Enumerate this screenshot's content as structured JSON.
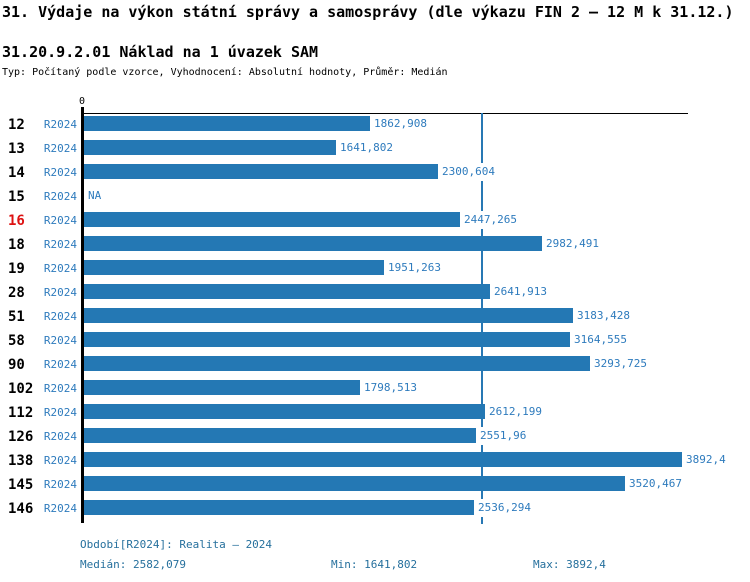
{
  "chart_data": {
    "type": "bar",
    "orientation": "horizontal",
    "title": "31. Výdaje na výkon státní správy a samosprávy (dle výkazu FIN 2 – 12 M k 31.12.)",
    "subtitle": "31.20.9.2.01 Náklad na 1 úvazek SAM",
    "meta": "Typ: Počítaný podle vzorce, Vyhodnocení: Absolutní hodnoty, Průměr: Medián",
    "series_label": "R2024",
    "na_label": "NA",
    "axis": {
      "zero_label": "0",
      "xlim": [
        0,
        3930
      ],
      "grid": false
    },
    "median_value": 2582.079,
    "categories": [
      "12",
      "13",
      "14",
      "15",
      "16",
      "18",
      "19",
      "28",
      "51",
      "58",
      "90",
      "102",
      "112",
      "126",
      "138",
      "145",
      "146"
    ],
    "rows": [
      {
        "id": "12",
        "value": 1862.908,
        "label": "1862,908",
        "highlighted": false
      },
      {
        "id": "13",
        "value": 1641.802,
        "label": "1641,802",
        "highlighted": false
      },
      {
        "id": "14",
        "value": 2300.604,
        "label": "2300,604",
        "highlighted": false
      },
      {
        "id": "15",
        "value": null,
        "label": "NA",
        "highlighted": false
      },
      {
        "id": "16",
        "value": 2447.265,
        "label": "2447,265",
        "highlighted": true
      },
      {
        "id": "18",
        "value": 2982.491,
        "label": "2982,491",
        "highlighted": false
      },
      {
        "id": "19",
        "value": 1951.263,
        "label": "1951,263",
        "highlighted": false
      },
      {
        "id": "28",
        "value": 2641.913,
        "label": "2641,913",
        "highlighted": false
      },
      {
        "id": "51",
        "value": 3183.428,
        "label": "3183,428",
        "highlighted": false
      },
      {
        "id": "58",
        "value": 3164.555,
        "label": "3164,555",
        "highlighted": false
      },
      {
        "id": "90",
        "value": 3293.725,
        "label": "3293,725",
        "highlighted": false
      },
      {
        "id": "102",
        "value": 1798.513,
        "label": "1798,513",
        "highlighted": false
      },
      {
        "id": "112",
        "value": 2612.199,
        "label": "2612,199",
        "highlighted": false
      },
      {
        "id": "126",
        "value": 2551.96,
        "label": "2551,96",
        "highlighted": false
      },
      {
        "id": "138",
        "value": 3892.4,
        "label": "3892,4",
        "highlighted": false
      },
      {
        "id": "145",
        "value": 3520.467,
        "label": "3520,467",
        "highlighted": false
      },
      {
        "id": "146",
        "value": 2536.294,
        "label": "2536,294",
        "highlighted": false
      }
    ],
    "footer": {
      "period": "Období[R2024]: Realita – 2024",
      "median": "Medián: 2582,079",
      "min": "Min: 1641,802",
      "max": "Max: 3892,4"
    },
    "colors": {
      "bar": "#2478b4",
      "series_text": "#2e7bbd",
      "footer_text": "#26709d",
      "highlight_red": "#dd1111",
      "axis_black": "#000000"
    }
  }
}
